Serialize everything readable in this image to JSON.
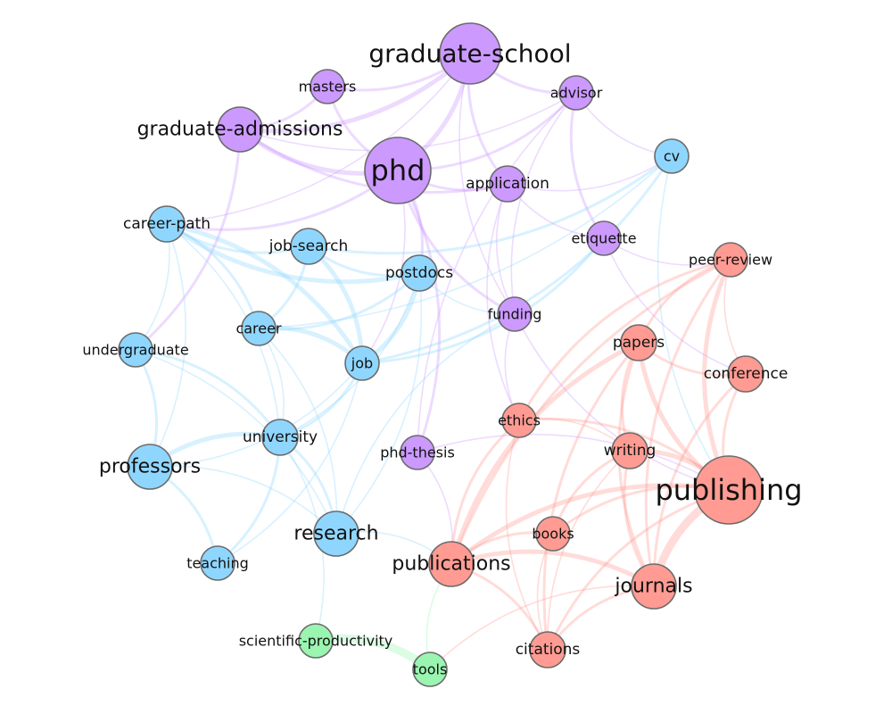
{
  "groups": {
    "purple": "#cc99ff",
    "blue": "#8fd6ff",
    "red": "#ff9b92",
    "green": "#9af5b0"
  },
  "nodes": [
    {
      "id": "graduate-school",
      "label": "graduate-school",
      "group": "purple",
      "size": "xl"
    },
    {
      "id": "masters",
      "label": "masters",
      "group": "purple",
      "size": "s"
    },
    {
      "id": "advisor",
      "label": "advisor",
      "group": "purple",
      "size": "s"
    },
    {
      "id": "graduate-admissions",
      "label": "graduate-admissions",
      "group": "purple",
      "size": "l"
    },
    {
      "id": "phd",
      "label": "phd",
      "group": "purple",
      "size": "xxl"
    },
    {
      "id": "application",
      "label": "application",
      "group": "purple",
      "size": "m"
    },
    {
      "id": "etiquette",
      "label": "etiquette",
      "group": "purple",
      "size": "s"
    },
    {
      "id": "funding",
      "label": "funding",
      "group": "purple",
      "size": "s"
    },
    {
      "id": "phd-thesis",
      "label": "phd-thesis",
      "group": "purple",
      "size": "s"
    },
    {
      "id": "cv",
      "label": "cv",
      "group": "blue",
      "size": "s"
    },
    {
      "id": "career-path",
      "label": "career-path",
      "group": "blue",
      "size": "m"
    },
    {
      "id": "job-search",
      "label": "job-search",
      "group": "blue",
      "size": "m"
    },
    {
      "id": "postdocs",
      "label": "postdocs",
      "group": "blue",
      "size": "m"
    },
    {
      "id": "career",
      "label": "career",
      "group": "blue",
      "size": "s"
    },
    {
      "id": "undergraduate",
      "label": "undergraduate",
      "group": "blue",
      "size": "s"
    },
    {
      "id": "job",
      "label": "job",
      "group": "blue",
      "size": "s"
    },
    {
      "id": "university",
      "label": "university",
      "group": "blue",
      "size": "m"
    },
    {
      "id": "professors",
      "label": "professors",
      "group": "blue",
      "size": "l"
    },
    {
      "id": "research",
      "label": "research",
      "group": "blue",
      "size": "l"
    },
    {
      "id": "teaching",
      "label": "teaching",
      "group": "blue",
      "size": "s"
    },
    {
      "id": "peer-review",
      "label": "peer-review",
      "group": "red",
      "size": "s"
    },
    {
      "id": "papers",
      "label": "papers",
      "group": "red",
      "size": "m"
    },
    {
      "id": "conference",
      "label": "conference",
      "group": "red",
      "size": "m"
    },
    {
      "id": "ethics",
      "label": "ethics",
      "group": "red",
      "size": "s"
    },
    {
      "id": "writing",
      "label": "writing",
      "group": "red",
      "size": "m"
    },
    {
      "id": "publishing",
      "label": "publishing",
      "group": "red",
      "size": "xxl"
    },
    {
      "id": "books",
      "label": "books",
      "group": "red",
      "size": "s"
    },
    {
      "id": "publications",
      "label": "publications",
      "group": "red",
      "size": "l"
    },
    {
      "id": "journals",
      "label": "journals",
      "group": "red",
      "size": "l"
    },
    {
      "id": "citations",
      "label": "citations",
      "group": "red",
      "size": "m"
    },
    {
      "id": "scientific-productivity",
      "label": "scientific-productivity",
      "group": "green",
      "size": "s"
    },
    {
      "id": "tools",
      "label": "tools",
      "group": "green",
      "size": "s"
    }
  ],
  "edges": [
    [
      "graduate-school",
      "phd",
      3
    ],
    [
      "graduate-school",
      "masters",
      2
    ],
    [
      "graduate-school",
      "graduate-admissions",
      3
    ],
    [
      "graduate-school",
      "advisor",
      2
    ],
    [
      "graduate-school",
      "application",
      2
    ],
    [
      "graduate-school",
      "career-path",
      1
    ],
    [
      "graduate-school",
      "funding",
      1
    ],
    [
      "masters",
      "phd",
      2
    ],
    [
      "masters",
      "graduate-admissions",
      2
    ],
    [
      "graduate-admissions",
      "phd",
      3
    ],
    [
      "graduate-admissions",
      "application",
      2
    ],
    [
      "graduate-admissions",
      "advisor",
      1
    ],
    [
      "graduate-admissions",
      "undergraduate",
      2
    ],
    [
      "phd",
      "advisor",
      2
    ],
    [
      "phd",
      "application",
      2
    ],
    [
      "phd",
      "postdocs",
      2
    ],
    [
      "phd",
      "phd-thesis",
      2
    ],
    [
      "phd",
      "funding",
      2
    ],
    [
      "phd",
      "career-path",
      2
    ],
    [
      "phd",
      "job",
      1
    ],
    [
      "advisor",
      "etiquette",
      2
    ],
    [
      "advisor",
      "phd-thesis",
      1
    ],
    [
      "advisor",
      "funding",
      1
    ],
    [
      "advisor",
      "cv",
      1
    ],
    [
      "application",
      "cv",
      1
    ],
    [
      "application",
      "etiquette",
      1
    ],
    [
      "application",
      "funding",
      1
    ],
    [
      "application",
      "ethics",
      1
    ],
    [
      "cv",
      "job",
      2
    ],
    [
      "cv",
      "job-search",
      2
    ],
    [
      "cv",
      "career",
      1
    ],
    [
      "cv",
      "publishing",
      1
    ],
    [
      "career-path",
      "job",
      3
    ],
    [
      "career-path",
      "job-search",
      2
    ],
    [
      "career-path",
      "postdocs",
      3
    ],
    [
      "career-path",
      "career",
      2
    ],
    [
      "career-path",
      "undergraduate",
      1
    ],
    [
      "career-path",
      "university",
      1
    ],
    [
      "career-path",
      "professors",
      1
    ],
    [
      "job-search",
      "job",
      3
    ],
    [
      "job-search",
      "postdocs",
      2
    ],
    [
      "job-search",
      "career",
      2
    ],
    [
      "postdocs",
      "job",
      3
    ],
    [
      "postdocs",
      "career",
      2
    ],
    [
      "postdocs",
      "funding",
      1
    ],
    [
      "postdocs",
      "research",
      1
    ],
    [
      "postdocs",
      "university",
      1
    ],
    [
      "career",
      "job",
      3
    ],
    [
      "career",
      "university",
      1
    ],
    [
      "career",
      "research",
      1
    ],
    [
      "job",
      "university",
      2
    ],
    [
      "job",
      "etiquette",
      2
    ],
    [
      "job",
      "professors",
      1
    ],
    [
      "job",
      "teaching",
      1
    ],
    [
      "undergraduate",
      "university",
      2
    ],
    [
      "undergraduate",
      "professors",
      2
    ],
    [
      "undergraduate",
      "research",
      1
    ],
    [
      "university",
      "professors",
      3
    ],
    [
      "university",
      "teaching",
      2
    ],
    [
      "university",
      "research",
      2
    ],
    [
      "university",
      "scientific-productivity",
      1
    ],
    [
      "professors",
      "teaching",
      2
    ],
    [
      "professors",
      "research",
      1
    ],
    [
      "research",
      "publications",
      1
    ],
    [
      "research",
      "funding",
      1
    ],
    [
      "etiquette",
      "peer-review",
      1
    ],
    [
      "etiquette",
      "conference",
      1
    ],
    [
      "funding",
      "publishing",
      1
    ],
    [
      "funding",
      "ethics",
      1
    ],
    [
      "phd-thesis",
      "publishing",
      1
    ],
    [
      "phd-thesis",
      "publications",
      1
    ],
    [
      "peer-review",
      "publishing",
      3
    ],
    [
      "peer-review",
      "papers",
      2
    ],
    [
      "peer-review",
      "journals",
      2
    ],
    [
      "peer-review",
      "ethics",
      2
    ],
    [
      "peer-review",
      "conference",
      1
    ],
    [
      "peer-review",
      "publications",
      2
    ],
    [
      "papers",
      "publishing",
      3
    ],
    [
      "papers",
      "conference",
      2
    ],
    [
      "papers",
      "writing",
      2
    ],
    [
      "papers",
      "journals",
      2
    ],
    [
      "papers",
      "citations",
      2
    ],
    [
      "papers",
      "publications",
      3
    ],
    [
      "conference",
      "publishing",
      2
    ],
    [
      "conference",
      "journals",
      2
    ],
    [
      "ethics",
      "publishing",
      2
    ],
    [
      "ethics",
      "publications",
      2
    ],
    [
      "ethics",
      "writing",
      1
    ],
    [
      "ethics",
      "citations",
      1
    ],
    [
      "writing",
      "publishing",
      3
    ],
    [
      "writing",
      "books",
      2
    ],
    [
      "writing",
      "journals",
      2
    ],
    [
      "writing",
      "citations",
      1
    ],
    [
      "publishing",
      "journals",
      4
    ],
    [
      "publishing",
      "publications",
      3
    ],
    [
      "publishing",
      "books",
      2
    ],
    [
      "publishing",
      "citations",
      2
    ],
    [
      "books",
      "publications",
      2
    ],
    [
      "books",
      "citations",
      1
    ],
    [
      "publications",
      "journals",
      3
    ],
    [
      "publications",
      "citations",
      2
    ],
    [
      "journals",
      "citations",
      2
    ],
    [
      "journals",
      "tools",
      1
    ],
    [
      "scientific-productivity",
      "tools",
      4
    ],
    [
      "tools",
      "publications",
      1
    ]
  ]
}
